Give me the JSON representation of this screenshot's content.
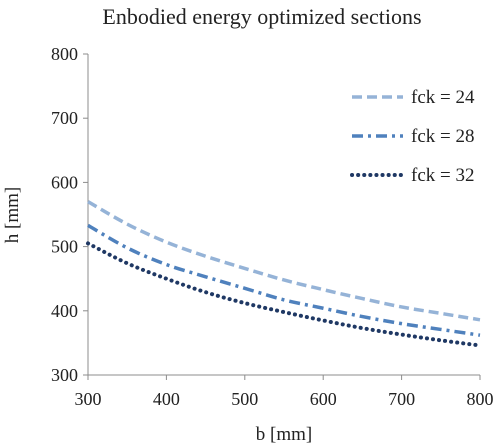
{
  "chart_data": {
    "type": "line",
    "title": "Enbodied energy optimized sections",
    "xlabel": "b [mm]",
    "ylabel": "h [mm]",
    "xlim": [
      300,
      800
    ],
    "ylim": [
      300,
      800
    ],
    "xticks": [
      300,
      400,
      500,
      600,
      700,
      800
    ],
    "yticks": [
      300,
      400,
      500,
      600,
      700,
      800
    ],
    "grid": false,
    "legend_position": "top-right",
    "x": [
      300,
      350,
      400,
      450,
      500,
      550,
      600,
      650,
      700,
      750,
      800
    ],
    "series": [
      {
        "name": "fck = 24",
        "color": "#95b3d7",
        "line_style": "dashed",
        "values": [
          570,
          535,
          507,
          485,
          466,
          448,
          433,
          419,
          406,
          396,
          386
        ]
      },
      {
        "name": "fck = 28",
        "color": "#4f81bd",
        "line_style": "dash-dot",
        "values": [
          533,
          498,
          472,
          453,
          435,
          417,
          404,
          391,
          380,
          371,
          362
        ]
      },
      {
        "name": "fck = 32",
        "color": "#1f3864",
        "line_style": "dotted",
        "values": [
          505,
          474,
          450,
          429,
          412,
          398,
          385,
          373,
          363,
          354,
          346
        ]
      }
    ]
  }
}
